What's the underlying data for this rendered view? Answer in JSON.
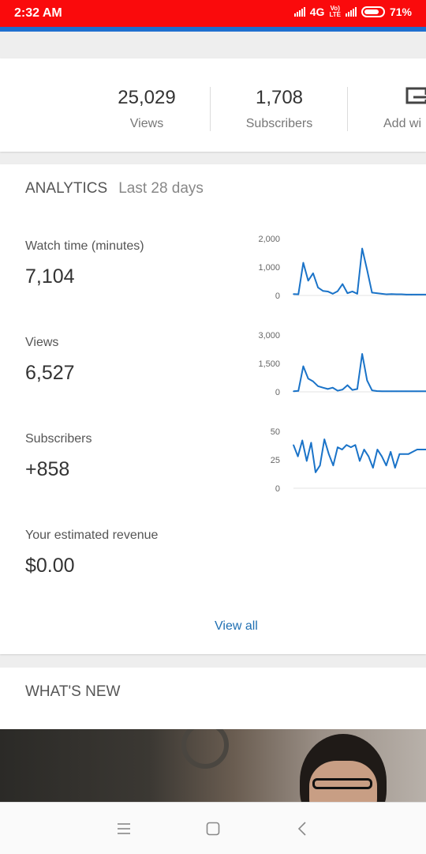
{
  "status_bar": {
    "time": "2:32 AM",
    "network": "4G",
    "volte": "Vo)",
    "lte": "LTE",
    "battery": "71%"
  },
  "channel_stats": {
    "views_value": "25,029",
    "views_label": "Views",
    "subs_value": "1,708",
    "subs_label": "Subscribers",
    "add_label": "Add wi"
  },
  "analytics": {
    "title": "ANALYTICS",
    "period": "Last 28 days",
    "metrics": [
      {
        "label": "Watch time (minutes)",
        "value": "7,104"
      },
      {
        "label": "Views",
        "value": "6,527"
      },
      {
        "label": "Subscribers",
        "value": "+858"
      },
      {
        "label": "Your estimated revenue",
        "value": "$0.00"
      }
    ],
    "view_all": "View all"
  },
  "chart_data": [
    {
      "type": "line",
      "title": "Watch time (minutes)",
      "y_ticks": [
        "2,000",
        "1,000",
        "0"
      ],
      "ylim": [
        0,
        2000
      ],
      "x": [
        1,
        2,
        3,
        4,
        5,
        6,
        7,
        8,
        9,
        10,
        11,
        12,
        13,
        14,
        15,
        16,
        17,
        18,
        19,
        20,
        21,
        22,
        23,
        24,
        25,
        26,
        27,
        28
      ],
      "values": [
        50,
        40,
        1150,
        520,
        780,
        280,
        160,
        140,
        60,
        150,
        400,
        80,
        140,
        60,
        1650,
        900,
        100,
        80,
        60,
        40,
        50,
        40,
        40,
        30,
        30,
        30,
        30,
        30
      ]
    },
    {
      "type": "line",
      "title": "Views",
      "y_ticks": [
        "3,000",
        "1,500",
        "0"
      ],
      "ylim": [
        0,
        3000
      ],
      "x": [
        1,
        2,
        3,
        4,
        5,
        6,
        7,
        8,
        9,
        10,
        11,
        12,
        13,
        14,
        15,
        16,
        17,
        18,
        19,
        20,
        21,
        22,
        23,
        24,
        25,
        26,
        27,
        28
      ],
      "values": [
        30,
        50,
        1350,
        700,
        550,
        300,
        220,
        150,
        220,
        60,
        120,
        350,
        100,
        150,
        2000,
        600,
        80,
        40,
        30,
        30,
        30,
        30,
        30,
        30,
        30,
        30,
        30,
        30
      ]
    },
    {
      "type": "line",
      "title": "Subscribers",
      "y_ticks": [
        "50",
        "25",
        "0"
      ],
      "ylim": [
        0,
        50
      ],
      "x": [
        1,
        2,
        3,
        4,
        5,
        6,
        7,
        8,
        9,
        10,
        11,
        12,
        13,
        14,
        15,
        16,
        17,
        18,
        19,
        20,
        21,
        22,
        23,
        24,
        25,
        26,
        27,
        28,
        29,
        30,
        31
      ],
      "values": [
        38,
        28,
        42,
        24,
        40,
        14,
        20,
        43,
        30,
        20,
        36,
        34,
        38,
        36,
        38,
        24,
        34,
        28,
        18,
        34,
        28,
        20,
        32,
        18,
        30,
        30,
        30,
        32,
        34,
        34,
        34
      ]
    }
  ],
  "whats_new": {
    "title": "WHAT'S NEW"
  },
  "colors": {
    "status_bar": "#fa0a0c",
    "accent": "#1f6fb2",
    "chart_line": "#1a73c8"
  }
}
